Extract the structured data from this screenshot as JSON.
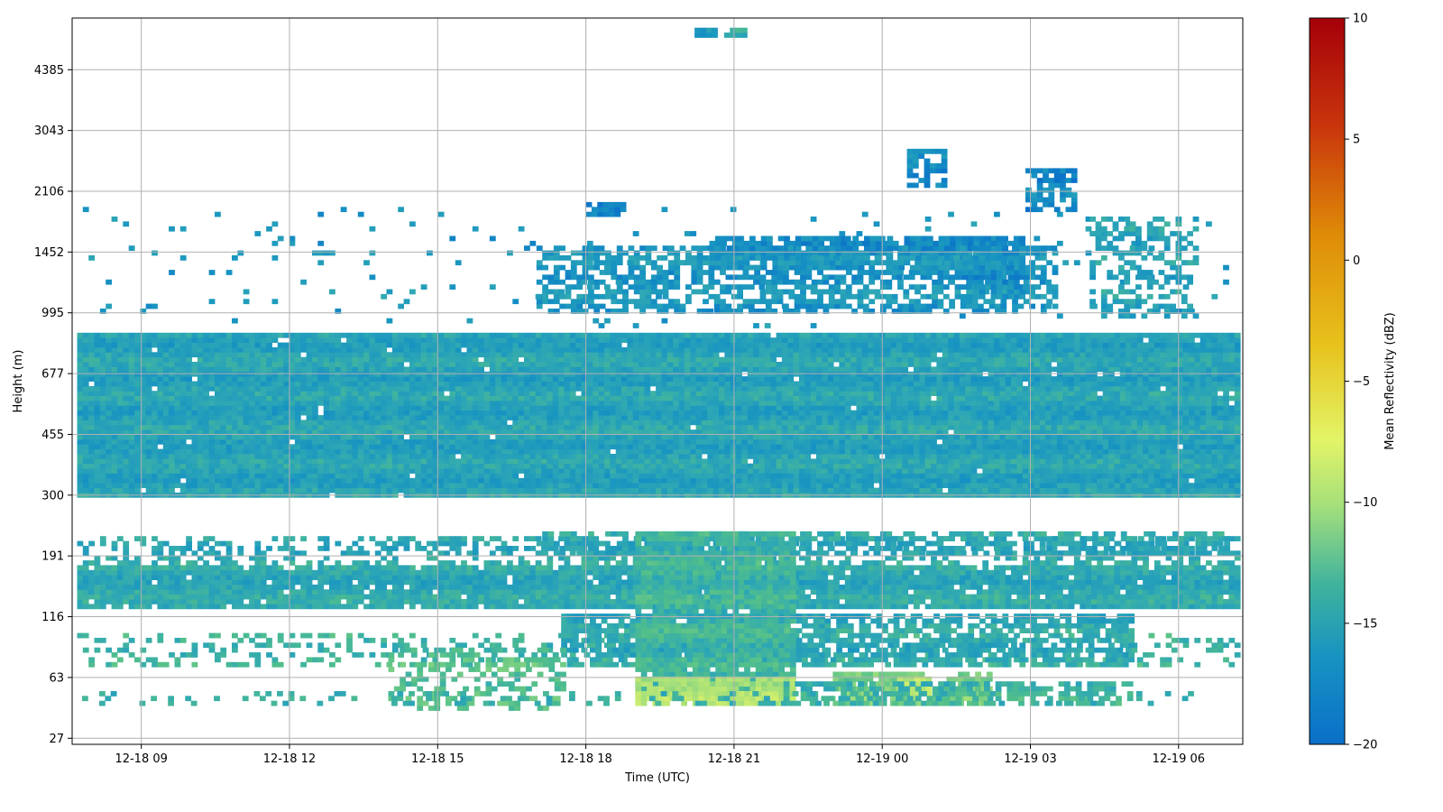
{
  "chart_data": {
    "type": "heatmap",
    "title": "",
    "xlabel": "Time (UTC)",
    "ylabel": "Height (m)",
    "x_ticks": [
      "12-18 09",
      "12-18 12",
      "12-18 15",
      "12-18 18",
      "12-18 21",
      "12-19 00",
      "12-19 03",
      "12-19 06"
    ],
    "x_tick_hours": [
      9,
      12,
      15,
      18,
      21,
      24,
      27,
      30
    ],
    "xlim_hours": [
      7.6,
      31.3
    ],
    "y_ticks": [
      "27",
      "63",
      "116",
      "191",
      "300",
      "455",
      "677",
      "995",
      "1452",
      "2106",
      "3043",
      "4385"
    ],
    "y_tick_values": [
      27,
      63,
      116,
      191,
      300,
      455,
      677,
      995,
      1452,
      2106,
      3043,
      4385
    ],
    "ylim_index": [
      -0.1,
      11.85
    ],
    "grid": true,
    "colorbar": {
      "label": "Mean Reflectivity (dBZ)",
      "min": -20,
      "max": 10,
      "ticks": [
        "10",
        "5",
        "0",
        "−5",
        "−10",
        "−15",
        "−20"
      ],
      "tick_values": [
        10,
        5,
        0,
        -5,
        -10,
        -15,
        -20
      ],
      "colormap": "jet-like blue-teal-green-yellow-orange-red"
    },
    "bands": [
      {
        "t0": 7.7,
        "t1": 31.2,
        "h0": 300,
        "h1": 870,
        "dbz": -16.5,
        "coverage": 0.99
      },
      {
        "t0": 7.7,
        "t1": 31.2,
        "h0": 125,
        "h1": 175,
        "dbz": -16.0,
        "coverage": 0.95
      },
      {
        "t0": 7.7,
        "t1": 31.2,
        "h0": 175,
        "h1": 225,
        "dbz": -16.0,
        "coverage": 0.45
      },
      {
        "t0": 17.0,
        "t1": 31.0,
        "h0": 190,
        "h1": 230,
        "dbz": -16.0,
        "coverage": 0.6
      },
      {
        "t0": 7.7,
        "t1": 31.2,
        "h0": 70,
        "h1": 100,
        "dbz": -15.0,
        "coverage": 0.3
      },
      {
        "t0": 17.5,
        "t1": 29.0,
        "h0": 70,
        "h1": 120,
        "dbz": -16.0,
        "coverage": 0.7
      },
      {
        "t0": 19.0,
        "t1": 22.2,
        "h0": 50,
        "h1": 230,
        "dbz": -15.0,
        "coverage": 0.92
      },
      {
        "t0": 19.0,
        "t1": 22.2,
        "h0": 42,
        "h1": 65,
        "dbz": -10.5,
        "coverage": 0.95
      },
      {
        "t0": 23.0,
        "t1": 24.8,
        "h0": 42,
        "h1": 66,
        "dbz": -12.5,
        "coverage": 0.85
      },
      {
        "t0": 24.3,
        "t1": 24.9,
        "h0": 48,
        "h1": 62,
        "dbz": -9.5,
        "coverage": 0.9
      },
      {
        "t0": 25.3,
        "t1": 26.2,
        "h0": 42,
        "h1": 66,
        "dbz": -12.5,
        "coverage": 0.85
      },
      {
        "t0": 22.0,
        "t1": 29.0,
        "h0": 42,
        "h1": 60,
        "dbz": -15.0,
        "coverage": 0.6
      },
      {
        "t0": 14.0,
        "t1": 17.5,
        "h0": 40,
        "h1": 85,
        "dbz": -14.0,
        "coverage": 0.35
      },
      {
        "t0": 7.8,
        "t1": 31.0,
        "h0": 42,
        "h1": 52,
        "dbz": -16.0,
        "coverage": 0.2
      },
      {
        "t0": 17.0,
        "t1": 27.5,
        "h0": 990,
        "h1": 1500,
        "dbz": -17.5,
        "coverage": 0.6
      },
      {
        "t0": 20.5,
        "t1": 26.5,
        "h0": 1300,
        "h1": 1600,
        "dbz": -18.0,
        "coverage": 0.85
      },
      {
        "t0": 25.5,
        "t1": 26.8,
        "h0": 1100,
        "h1": 1600,
        "dbz": -18.0,
        "coverage": 0.7
      },
      {
        "t0": 7.7,
        "t1": 31.0,
        "h0": 900,
        "h1": 1900,
        "dbz": -17.5,
        "coverage": 0.04
      },
      {
        "t0": 28.2,
        "t1": 30.3,
        "h0": 950,
        "h1": 1800,
        "dbz": -16.5,
        "coverage": 0.45
      },
      {
        "t0": 18.0,
        "t1": 18.7,
        "h0": 1780,
        "h1": 1980,
        "dbz": -18.5,
        "coverage": 0.8
      },
      {
        "t0": 24.5,
        "t1": 25.3,
        "h0": 2150,
        "h1": 2700,
        "dbz": -18.5,
        "coverage": 0.7
      },
      {
        "t0": 26.9,
        "t1": 27.9,
        "h0": 1850,
        "h1": 2450,
        "dbz": -18.5,
        "coverage": 0.7
      },
      {
        "t0": 20.8,
        "t1": 21.2,
        "h0": 5300,
        "h1": 5600,
        "dbz": -15.5,
        "coverage": 0.7
      },
      {
        "t0": 20.2,
        "t1": 20.6,
        "h0": 5350,
        "h1": 5600,
        "dbz": -17.5,
        "coverage": 0.8
      }
    ]
  }
}
